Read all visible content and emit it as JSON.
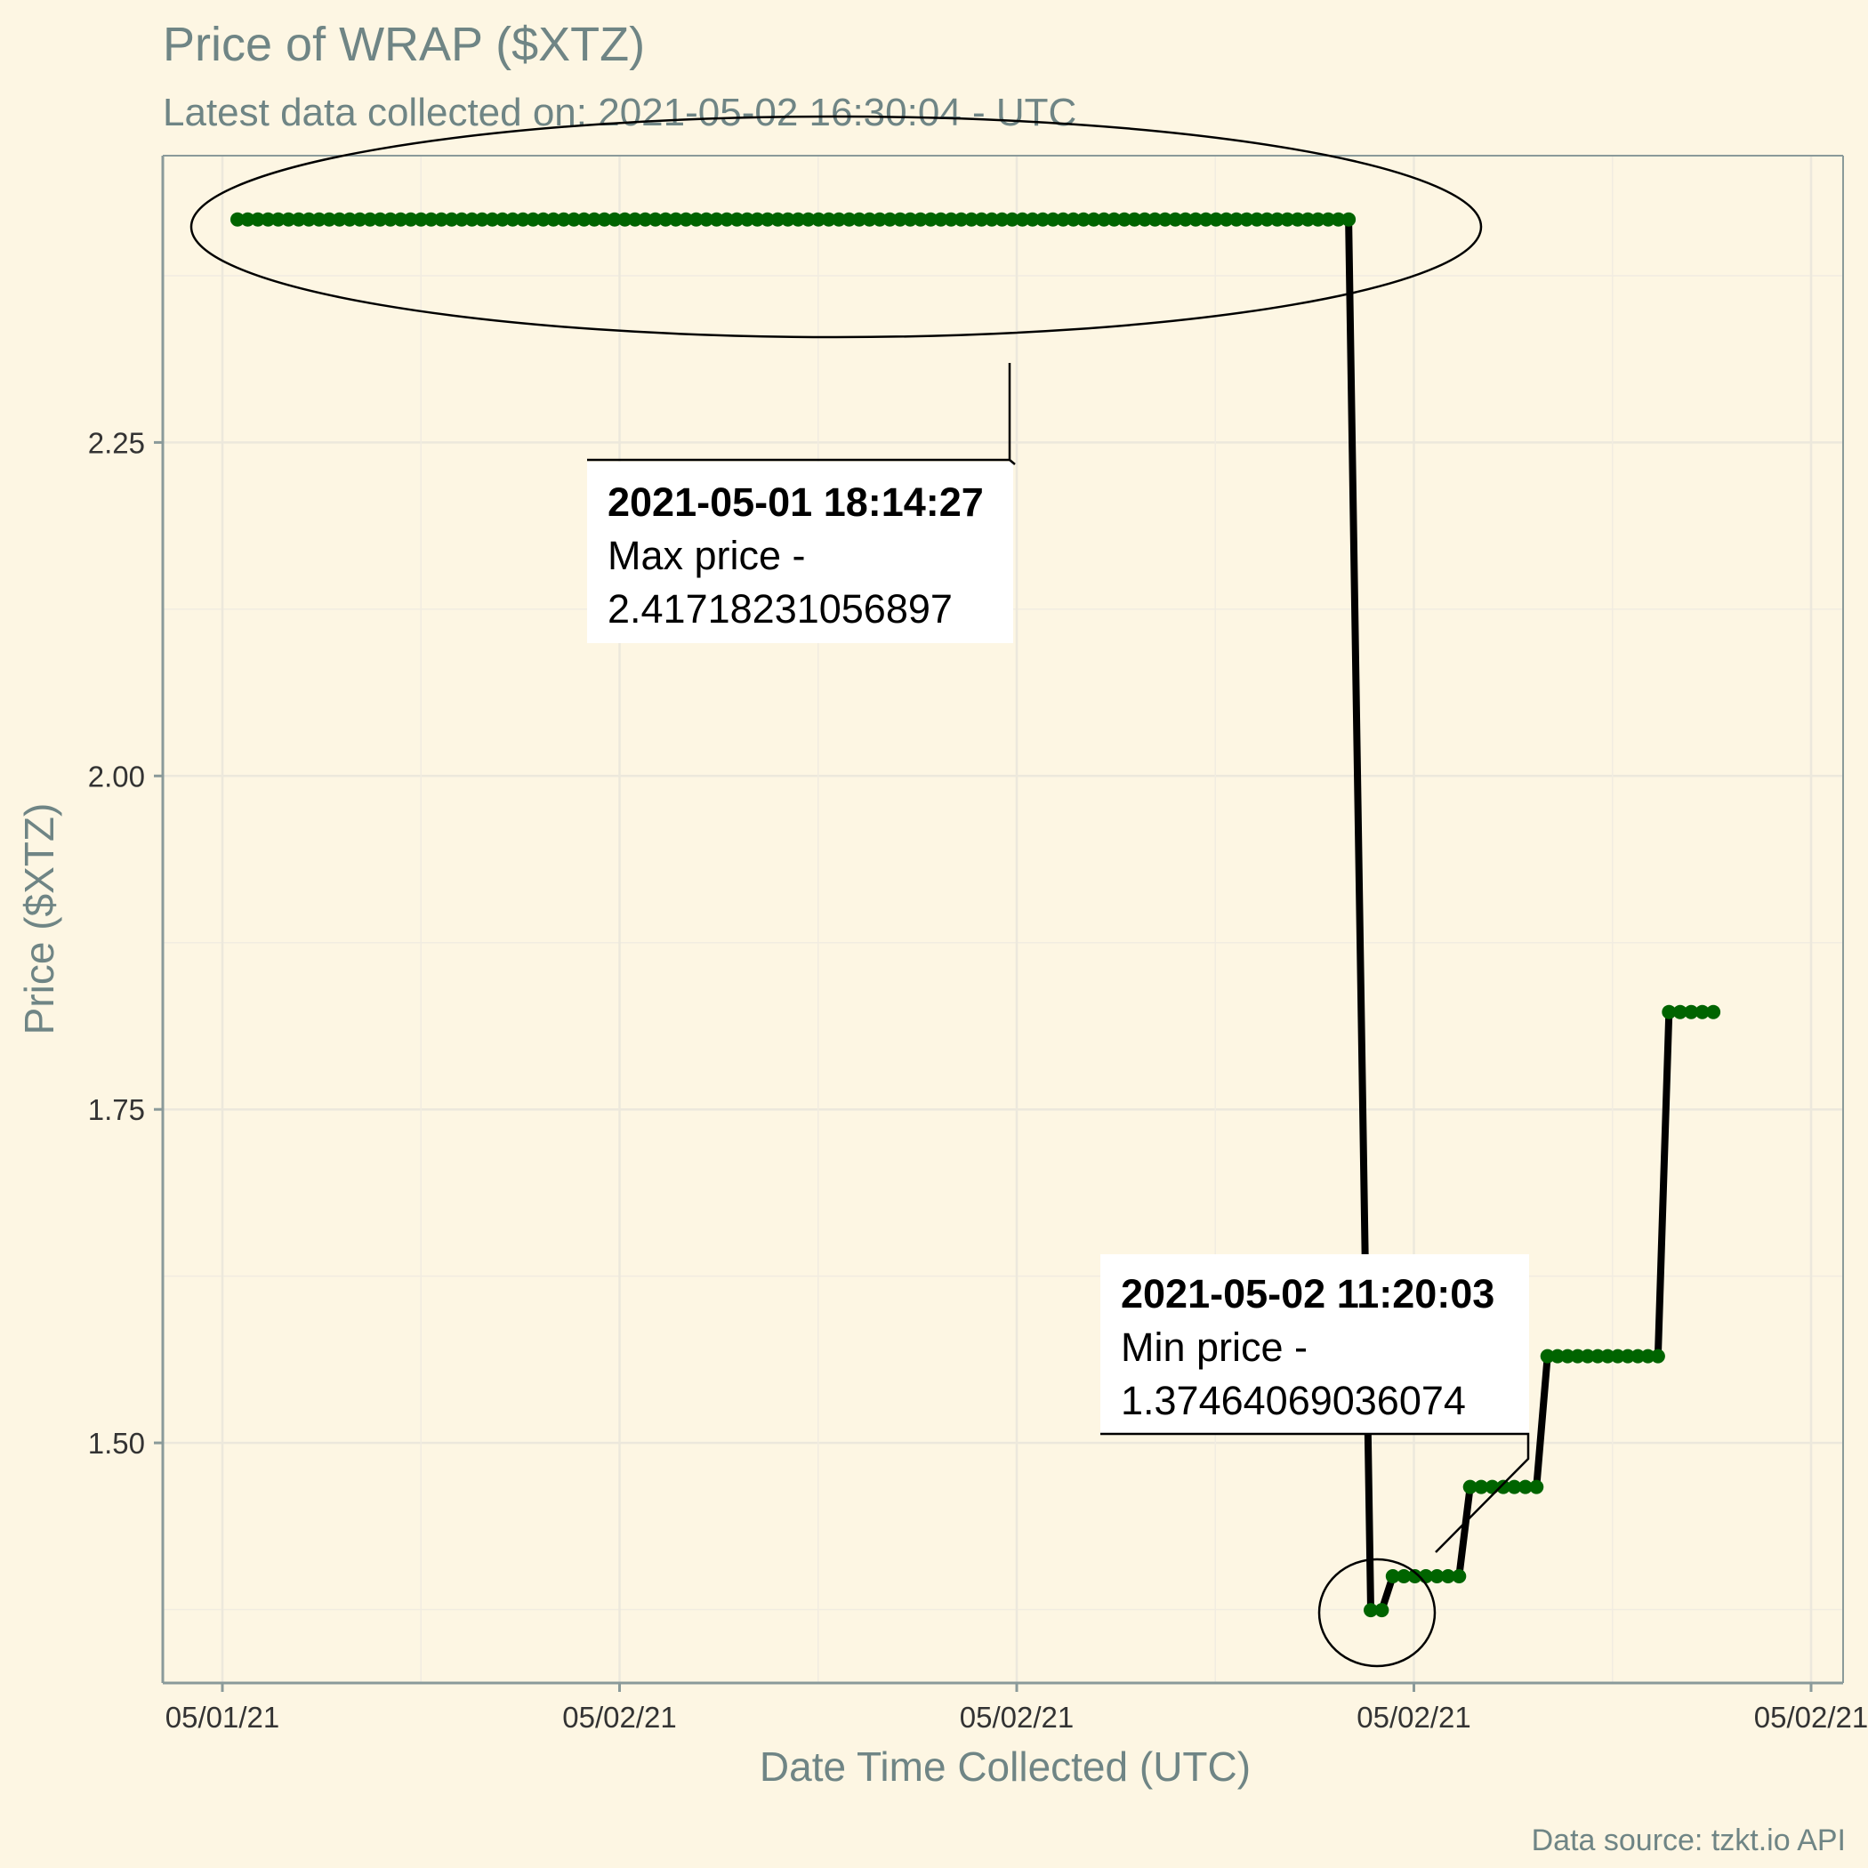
{
  "chart_data": {
    "type": "line",
    "title": "Price of WRAP ($XTZ)",
    "subtitle": "Latest data collected on: 2021-05-02 16:30:04  - UTC",
    "xlabel": "Date Time Collected (UTC)",
    "ylabel": "Price ($XTZ)",
    "caption": "Data source: tzkt.io API",
    "ylim": [
      1.32,
      2.465
    ],
    "y_ticks": [
      1.5,
      1.75,
      2.0,
      2.25
    ],
    "y_tick_labels": [
      "1.50",
      "1.75",
      "2.00",
      "2.25"
    ],
    "x_tick_labels": [
      "05/01/21",
      "05/02/21",
      "05/02/21",
      "05/02/21",
      "05/02/21"
    ],
    "grid": true,
    "line_color": "#000000",
    "point_color": "#006400",
    "background": "#fdf6e3",
    "series": [
      {
        "segments": [
          {
            "x_start": "2021-05-01 18:14:27",
            "x_end": "2021-05-02 11:00:00",
            "y": 2.41718231056897
          },
          {
            "x_start": "2021-05-02 11:20:03",
            "x_end": "2021-05-02 11:30:00",
            "y": 1.37464069036074
          },
          {
            "x_start": "2021-05-02 11:40:00",
            "x_end": "2021-05-02 12:40:00",
            "y": 1.4
          },
          {
            "x_start": "2021-05-02 12:50:00",
            "x_end": "2021-05-02 13:50:00",
            "y": 1.467
          },
          {
            "x_start": "2021-05-02 14:00:00",
            "x_end": "2021-05-02 15:40:00",
            "y": 1.565
          },
          {
            "x_start": "2021-05-02 15:50:00",
            "x_end": "2021-05-02 16:30:04",
            "y": 1.823
          }
        ]
      }
    ],
    "annotations": [
      {
        "time": "2021-05-01 18:14:27",
        "label": "Max price -",
        "value": "2.41718231056897"
      },
      {
        "time": "2021-05-02 11:20:03",
        "label": "Min price -",
        "value": "1.37464069036074"
      }
    ]
  }
}
